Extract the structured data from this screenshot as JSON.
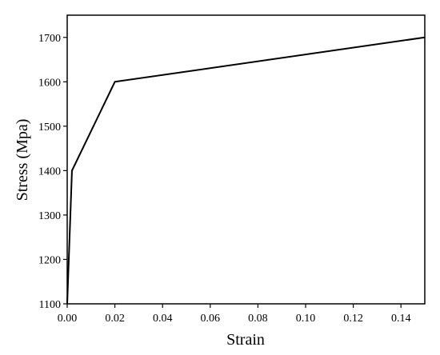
{
  "chart_data": {
    "type": "line",
    "title": "",
    "xlabel": "Strain",
    "ylabel": "Stress (Mpa)",
    "xlim": [
      0,
      0.15
    ],
    "ylim": [
      1100,
      1750
    ],
    "x_ticks": [
      0.0,
      0.02,
      0.04,
      0.06,
      0.08,
      0.1,
      0.12,
      0.14
    ],
    "x_tick_labels": [
      "0.00",
      "0.02",
      "0.04",
      "0.06",
      "0.08",
      "0.10",
      "0.12",
      "0.14"
    ],
    "y_ticks": [
      1100,
      1200,
      1300,
      1400,
      1500,
      1600,
      1700
    ],
    "y_tick_labels": [
      "1100",
      "1200",
      "1300",
      "1400",
      "1500",
      "1600",
      "1700"
    ],
    "grid": false,
    "legend": "none",
    "series": [
      {
        "color": "#000000",
        "x": [
          0.0,
          0.002,
          0.02,
          0.15
        ],
        "y": [
          1100,
          1400,
          1600,
          1700
        ]
      }
    ]
  }
}
